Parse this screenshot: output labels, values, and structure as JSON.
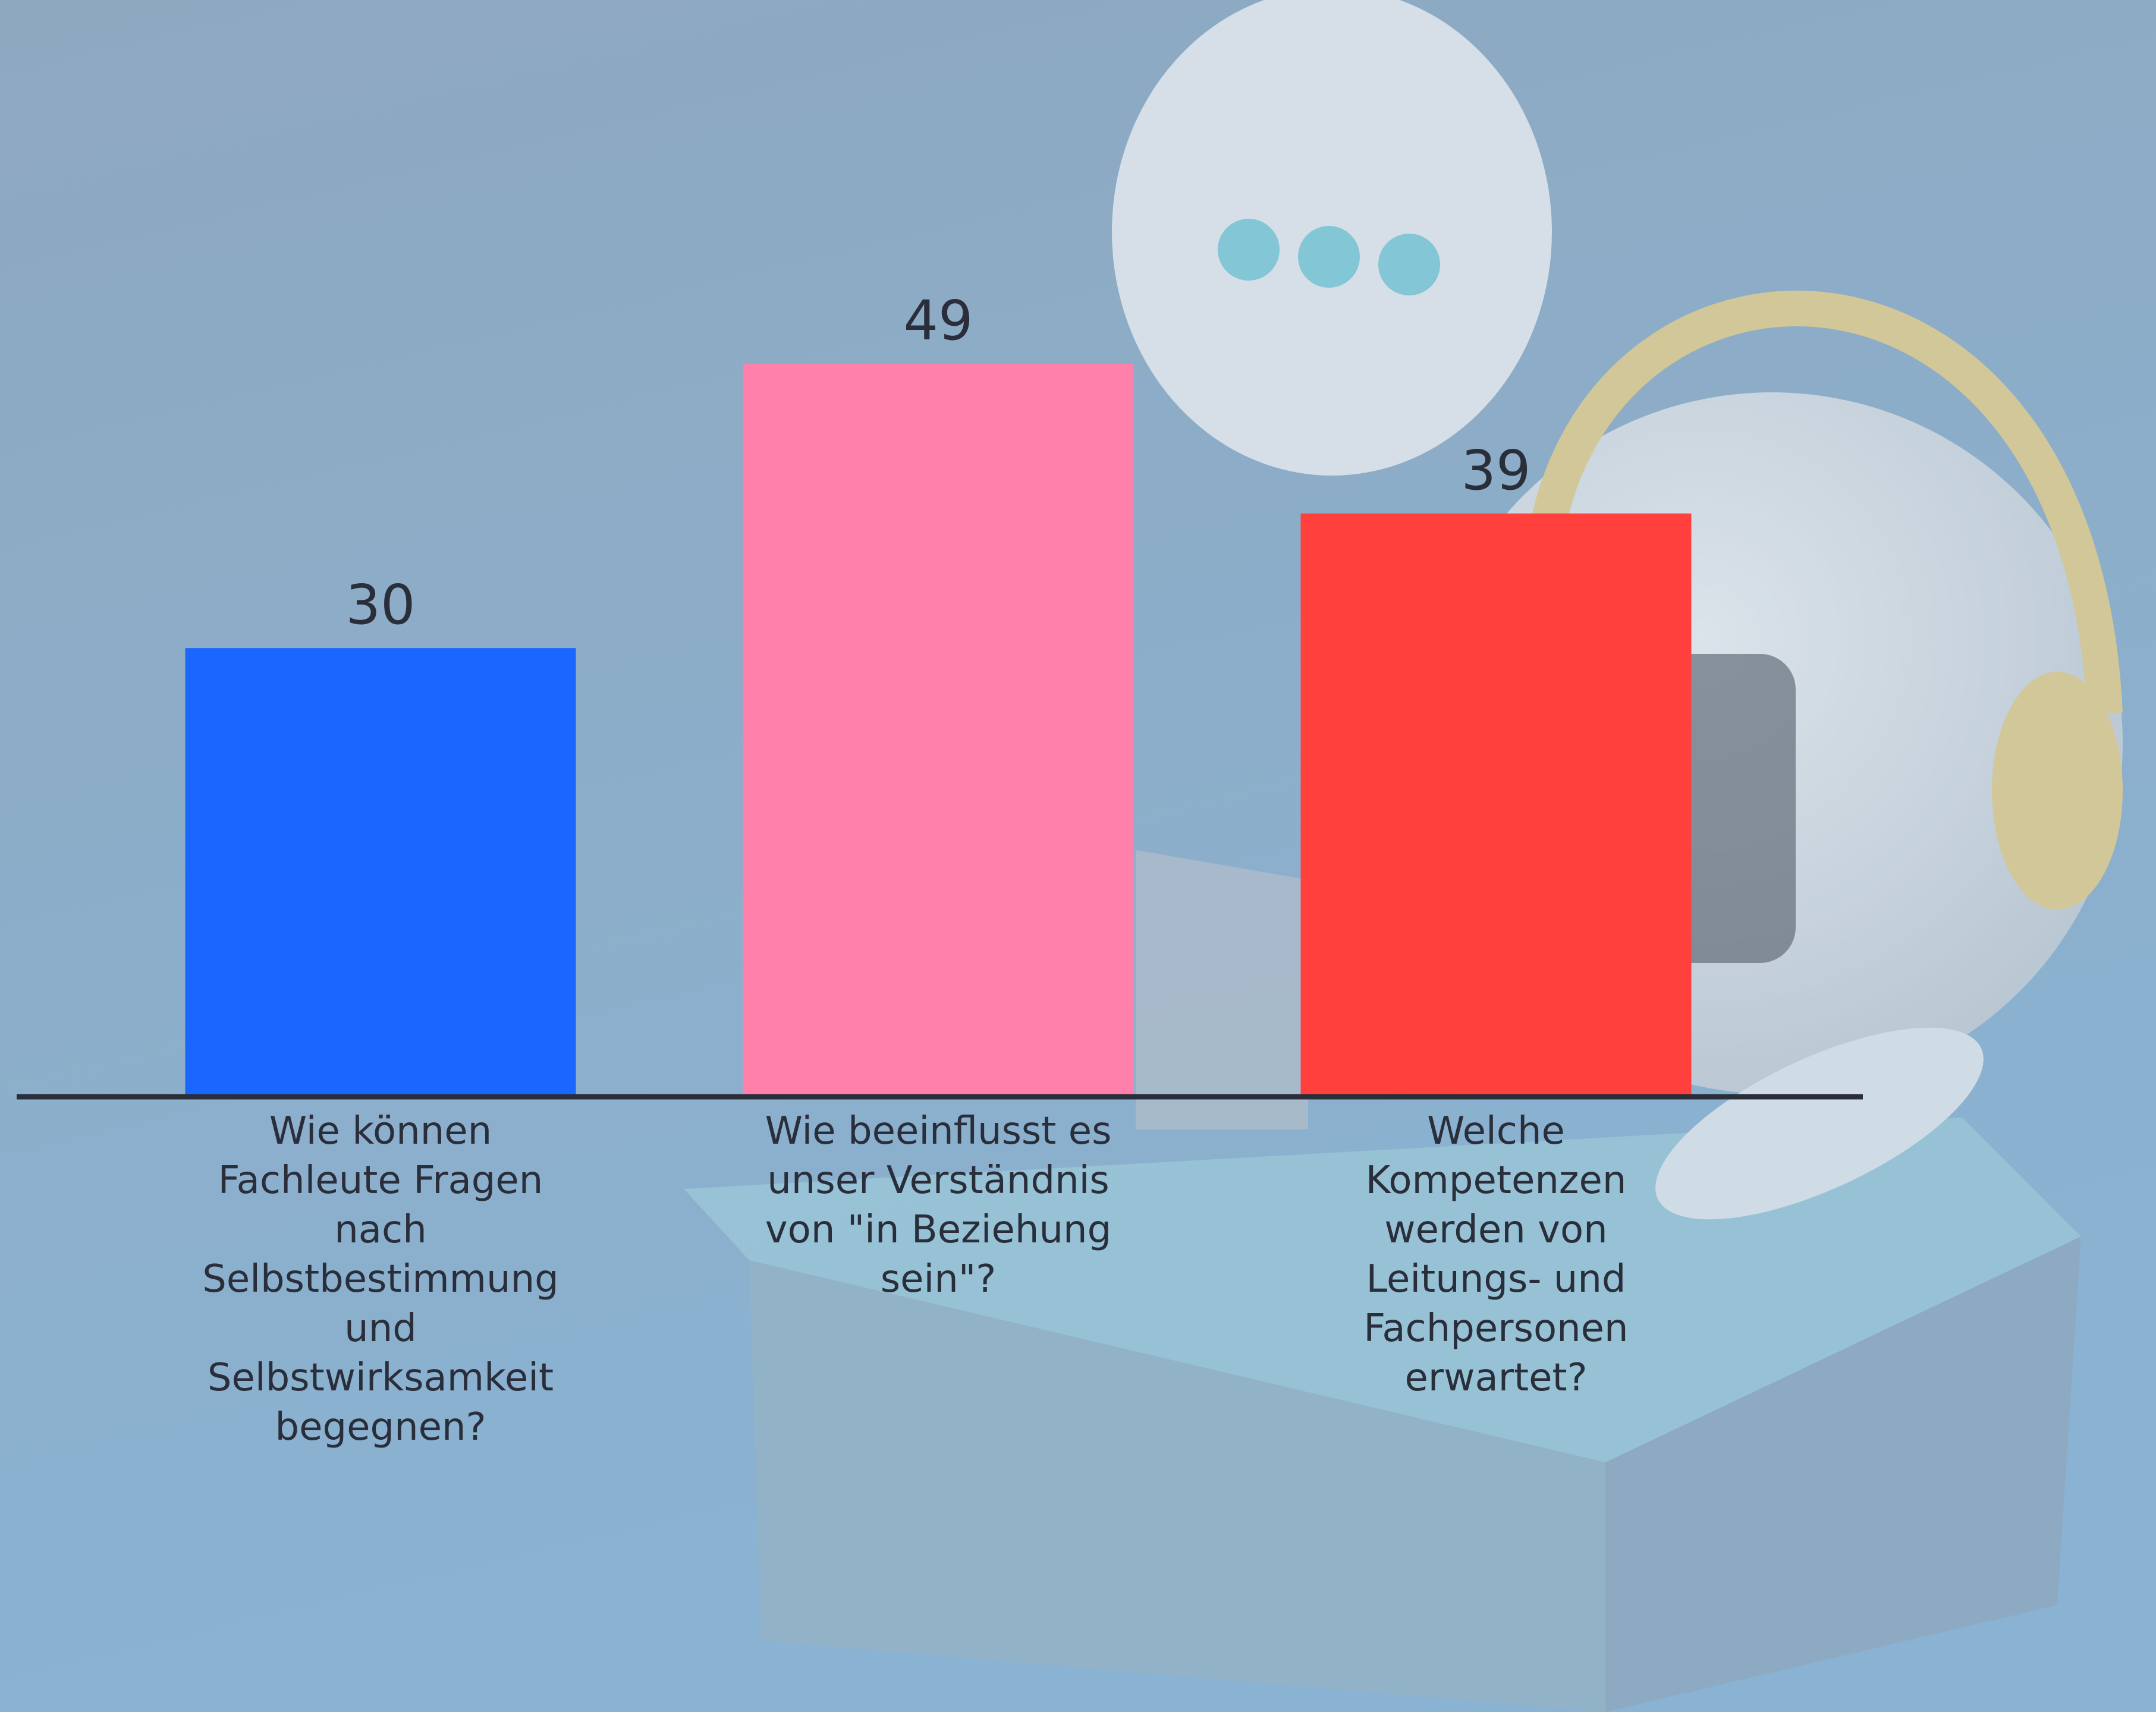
{
  "chart_data": {
    "type": "bar",
    "categories": [
      "Wie können Fachleute Fragen nach Selbstbestimmung und Selbstwirksamkeit begegnen?",
      "Wie beeinflusst es unser Verständnis von \"in Beziehung sein\"?",
      "Welche Kompetenzen werden von Leitungs- und Fachpersonen erwartet?"
    ],
    "values": [
      30,
      49,
      39
    ],
    "colors": [
      "#1a66ff",
      "#ff80aa",
      "#ff403d"
    ]
  }
}
